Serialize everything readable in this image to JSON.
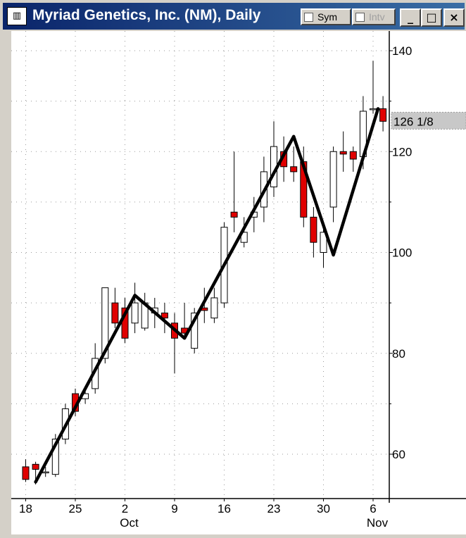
{
  "window": {
    "title": "Myriad Genetics, Inc. (NM), Daily",
    "sym_label": "Sym",
    "intv_label": "Intv",
    "minimize_glyph": "_",
    "maximize_glyph": "□",
    "close_glyph": "×",
    "icon_name": "chart-app-icon"
  },
  "colors": {
    "down_candle": "#e00000",
    "up_candle": "#ffffff",
    "trend_line": "#000000",
    "price_badge": "#c8c8c8"
  },
  "chart_data": {
    "type": "candlestick",
    "title": "Myriad Genetics, Inc. (NM), Daily",
    "ylim": [
      51,
      142
    ],
    "y_ticks": [
      60,
      80,
      100,
      120,
      140
    ],
    "last_price_label": "126 1/8",
    "last_price": 126.125,
    "grid": true,
    "x_ticks": [
      {
        "index": 0,
        "label": "18"
      },
      {
        "index": 5,
        "label": "25"
      },
      {
        "index": 10,
        "label": "2",
        "month": "Oct"
      },
      {
        "index": 15,
        "label": "9"
      },
      {
        "index": 20,
        "label": "16"
      },
      {
        "index": 25,
        "label": "23"
      },
      {
        "index": 30,
        "label": "30"
      },
      {
        "index": 35,
        "label": "6",
        "month": "Nov"
      }
    ],
    "candles": [
      {
        "o": 57.5,
        "h": 59,
        "l": 54.5,
        "c": 55
      },
      {
        "o": 58,
        "h": 58.5,
        "l": 54,
        "c": 57
      },
      {
        "o": 56.5,
        "h": 57.5,
        "l": 55.5,
        "c": 56.5
      },
      {
        "o": 56,
        "h": 64,
        "l": 55.5,
        "c": 63
      },
      {
        "o": 63,
        "h": 70,
        "l": 62,
        "c": 69
      },
      {
        "o": 72,
        "h": 73,
        "l": 67.5,
        "c": 68.5
      },
      {
        "o": 71,
        "h": 73,
        "l": 70,
        "c": 72
      },
      {
        "o": 73,
        "h": 82,
        "l": 72,
        "c": 79
      },
      {
        "o": 79,
        "h": 93,
        "l": 78,
        "c": 93
      },
      {
        "o": 90,
        "h": 93,
        "l": 85,
        "c": 86
      },
      {
        "o": 89,
        "h": 91,
        "l": 82,
        "c": 83
      },
      {
        "o": 86,
        "h": 94,
        "l": 84,
        "c": 90
      },
      {
        "o": 85,
        "h": 92,
        "l": 84.5,
        "c": 90
      },
      {
        "o": 88,
        "h": 91,
        "l": 85,
        "c": 89
      },
      {
        "o": 88,
        "h": 90,
        "l": 84,
        "c": 87
      },
      {
        "o": 86,
        "h": 88,
        "l": 76,
        "c": 83
      },
      {
        "o": 85,
        "h": 90,
        "l": 83,
        "c": 84
      },
      {
        "o": 81,
        "h": 89,
        "l": 80,
        "c": 88
      },
      {
        "o": 89,
        "h": 93,
        "l": 86,
        "c": 88.5
      },
      {
        "o": 87,
        "h": 93,
        "l": 86,
        "c": 91
      },
      {
        "o": 90,
        "h": 106,
        "l": 89,
        "c": 105
      },
      {
        "o": 108,
        "h": 120,
        "l": 104,
        "c": 107
      },
      {
        "o": 102,
        "h": 107,
        "l": 101,
        "c": 104
      },
      {
        "o": 107,
        "h": 111,
        "l": 104,
        "c": 108
      },
      {
        "o": 109,
        "h": 119,
        "l": 106,
        "c": 116
      },
      {
        "o": 113,
        "h": 126,
        "l": 111,
        "c": 121
      },
      {
        "o": 120,
        "h": 123,
        "l": 114,
        "c": 117
      },
      {
        "o": 117,
        "h": 121,
        "l": 114,
        "c": 116
      },
      {
        "o": 118,
        "h": 121,
        "l": 105,
        "c": 107
      },
      {
        "o": 107,
        "h": 109,
        "l": 99,
        "c": 102
      },
      {
        "o": 100,
        "h": 105,
        "l": 97,
        "c": 104
      },
      {
        "o": 109,
        "h": 121,
        "l": 106,
        "c": 120
      },
      {
        "o": 120,
        "h": 124,
        "l": 116,
        "c": 119.5
      },
      {
        "o": 120,
        "h": 121,
        "l": 116,
        "c": 118.5
      },
      {
        "o": 119,
        "h": 131,
        "l": 116.5,
        "c": 128
      },
      {
        "o": 128.5,
        "h": 138,
        "l": 127.5,
        "c": 128.5
      },
      {
        "o": 128.5,
        "h": 131,
        "l": 124,
        "c": 126
      }
    ],
    "trend_line": [
      {
        "i": 1,
        "y": 54.5
      },
      {
        "i": 11,
        "y": 91.5
      },
      {
        "i": 16,
        "y": 83
      },
      {
        "i": 27,
        "y": 123
      },
      {
        "i": 31,
        "y": 99.5
      },
      {
        "i": 35.5,
        "y": 128.5
      }
    ]
  }
}
